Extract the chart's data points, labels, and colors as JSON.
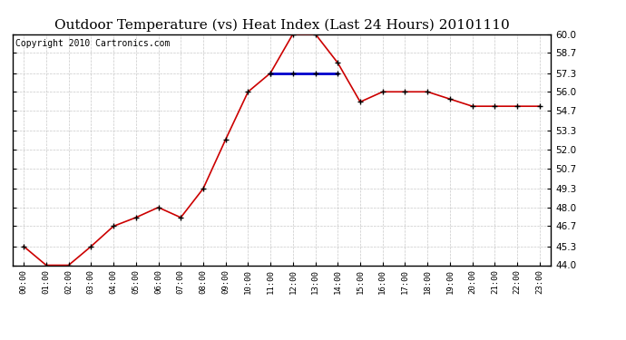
{
  "title": "Outdoor Temperature (vs) Heat Index (Last 24 Hours) 20101110",
  "copyright": "Copyright 2010 Cartronics.com",
  "x_labels": [
    "00:00",
    "01:00",
    "02:00",
    "03:00",
    "04:00",
    "05:00",
    "06:00",
    "07:00",
    "08:00",
    "09:00",
    "10:00",
    "11:00",
    "12:00",
    "13:00",
    "14:00",
    "15:00",
    "16:00",
    "17:00",
    "18:00",
    "19:00",
    "20:00",
    "21:00",
    "22:00",
    "23:00"
  ],
  "temp_values": [
    45.3,
    44.0,
    44.0,
    45.3,
    46.7,
    47.3,
    48.0,
    47.3,
    49.3,
    52.7,
    56.0,
    57.3,
    60.0,
    60.0,
    58.0,
    55.3,
    56.0,
    56.0,
    56.0,
    55.5,
    55.0,
    55.0,
    55.0,
    55.0
  ],
  "heat_values": [
    null,
    null,
    null,
    null,
    null,
    null,
    null,
    null,
    null,
    null,
    null,
    57.3,
    57.3,
    57.3,
    57.3,
    null,
    null,
    null,
    null,
    null,
    null,
    null,
    null,
    null
  ],
  "y_min": 44.0,
  "y_max": 60.0,
  "y_ticks": [
    44.0,
    45.3,
    46.7,
    48.0,
    49.3,
    50.7,
    52.0,
    53.3,
    54.7,
    56.0,
    57.3,
    58.7,
    60.0
  ],
  "temp_color": "#cc0000",
  "heat_color": "#0000cc",
  "grid_color": "#bbbbbb",
  "bg_color": "#ffffff",
  "title_fontsize": 11,
  "copyright_fontsize": 7
}
